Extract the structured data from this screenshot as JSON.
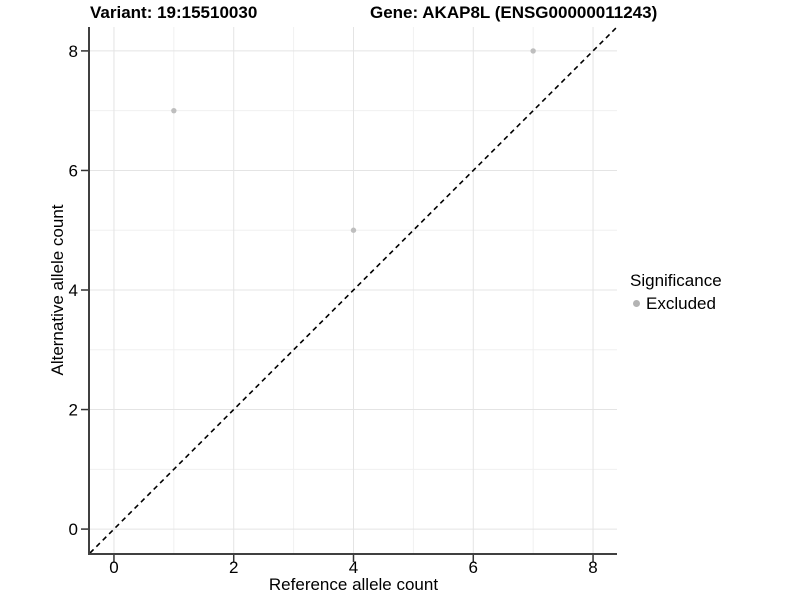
{
  "chart_data": {
    "type": "scatter",
    "title_left": "Variant: 19:15510030",
    "title_right": "Gene: AKAP8L (ENSG00000011243)",
    "xlabel": "Reference allele count",
    "ylabel": "Alternative allele count",
    "xlim": [
      -0.4,
      8.4
    ],
    "ylim": [
      -0.4,
      8.4
    ],
    "x_ticks": [
      0,
      2,
      4,
      6,
      8
    ],
    "y_ticks": [
      0,
      2,
      4,
      6,
      8
    ],
    "x_minor_ticks": [
      1,
      3,
      5,
      7
    ],
    "y_minor_ticks": [
      1,
      3,
      5,
      7
    ],
    "grid": "major+minor",
    "series": [
      {
        "name": "Excluded",
        "color": "#bebebe",
        "marker": "circle",
        "points": [
          [
            1,
            7
          ],
          [
            4,
            5
          ],
          [
            7,
            8
          ]
        ]
      }
    ],
    "reference_line": {
      "type": "identity y=x",
      "style": "dashed",
      "color": "#000000"
    },
    "legend": {
      "title": "Significance",
      "position": "right",
      "items": [
        {
          "label": "Excluded",
          "color": "#b3b3b3"
        }
      ]
    }
  },
  "colors": {
    "background": "#ffffff",
    "axis_line": "#404040",
    "tick_mark": "#333333",
    "gridline_major": "#e4e4e4",
    "gridline_minor": "#f0f0f0",
    "text": "#000000"
  }
}
